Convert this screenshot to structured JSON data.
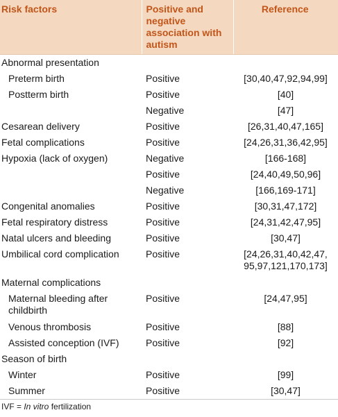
{
  "table": {
    "headers": {
      "risk_factors": "Risk factors",
      "association": "Positive and negative association with autism",
      "reference": "Reference"
    },
    "rows": [
      {
        "factor": "Abnormal presentation",
        "association": "",
        "reference": ""
      },
      {
        "factor": "Preterm birth",
        "association": "Positive",
        "reference": "[30,40,47,92,94,99]"
      },
      {
        "factor": "Postterm birth",
        "association": "Positive",
        "reference": "[40]"
      },
      {
        "factor": "",
        "association": "Negative",
        "reference": "[47]"
      },
      {
        "factor": "Cesarean delivery",
        "association": "Positive",
        "reference": "[26,31,40,47,165]"
      },
      {
        "factor": "Fetal complications",
        "association": "Positive",
        "reference": "[24,26,31,36,42,95]"
      },
      {
        "factor": "Hypoxia (lack of oxygen)",
        "association": "Negative",
        "reference": "[166-168]"
      },
      {
        "factor": "",
        "association": "Positive",
        "reference": "[24,40,49,50,96]"
      },
      {
        "factor": "",
        "association": "Negative",
        "reference": "[166,169-171]"
      },
      {
        "factor": "Congenital anomalies",
        "association": "Positive",
        "reference": "[30,31,47,172]"
      },
      {
        "factor": "Fetal respiratory distress",
        "association": "Positive",
        "reference": "[24,31,42,47,95]"
      },
      {
        "factor": "Natal ulcers and bleeding",
        "association": "Positive",
        "reference": "[30,47]"
      },
      {
        "factor": "Umbilical cord complication",
        "association": "Positive",
        "reference": "[24,26,31,40,42,47, 95,97,121,170,173]"
      },
      {
        "factor": "Maternal complications",
        "association": "",
        "reference": ""
      },
      {
        "factor": "Maternal bleeding after childbirth",
        "association": "Positive",
        "reference": "[24,47,95]"
      },
      {
        "factor": "Venous thrombosis",
        "association": "Positive",
        "reference": "[88]"
      },
      {
        "factor": "Assisted conception (IVF)",
        "association": "Positive",
        "reference": "[92]"
      },
      {
        "factor": "Season of birth",
        "association": "",
        "reference": ""
      },
      {
        "factor": "Winter",
        "association": "Positive",
        "reference": "[99]"
      },
      {
        "factor": "Summer",
        "association": "Positive",
        "reference": "[30,47]"
      }
    ]
  },
  "footnote": {
    "abbr": "IVF = ",
    "term": "In vitro",
    "rest": " fertilization"
  },
  "colors": {
    "header_bg": "#f4d8bf",
    "header_text": "#c2561a"
  }
}
